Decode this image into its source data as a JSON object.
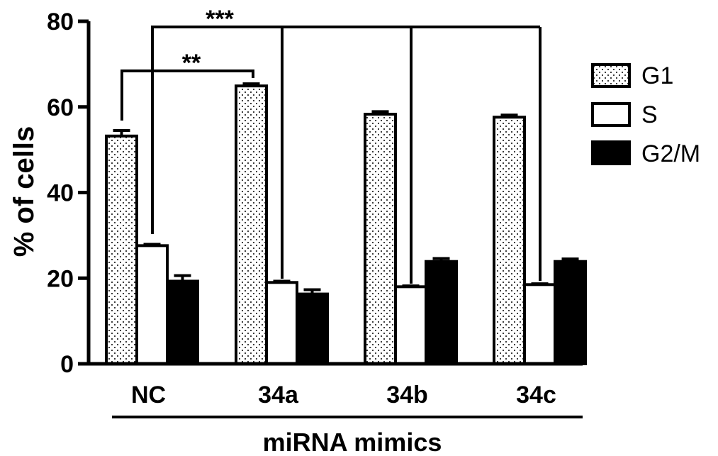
{
  "chart_data": {
    "type": "bar",
    "categories": [
      "NC",
      "34a",
      "34b",
      "34c"
    ],
    "series": [
      {
        "name": "G1",
        "values": [
          53.2,
          64.9,
          58.3,
          57.6
        ],
        "errors": [
          1.3,
          0.5,
          0.6,
          0.5
        ],
        "fill": "dots"
      },
      {
        "name": "S",
        "values": [
          27.6,
          19.0,
          18.0,
          18.5
        ],
        "errors": [
          0.3,
          0.3,
          0.2,
          0.2
        ],
        "fill": "#ffffff"
      },
      {
        "name": "G2/M",
        "values": [
          19.3,
          16.3,
          23.9,
          23.9
        ],
        "errors": [
          1.3,
          1.0,
          0.7,
          0.6
        ],
        "fill": "#000000"
      }
    ],
    "yticks": [
      "0",
      "20",
      "40",
      "60",
      "80"
    ],
    "ylim": [
      0,
      80
    ],
    "ylabel": "% of cells",
    "xlabel": "miRNA mimics",
    "legend_position": "right",
    "annotations": [
      {
        "text": "**",
        "from": "NC/G1",
        "to": "34a/G1"
      },
      {
        "text": "***",
        "from": "NC/S",
        "to": [
          "34a/S",
          "34b/S",
          "34c/S"
        ]
      }
    ]
  }
}
